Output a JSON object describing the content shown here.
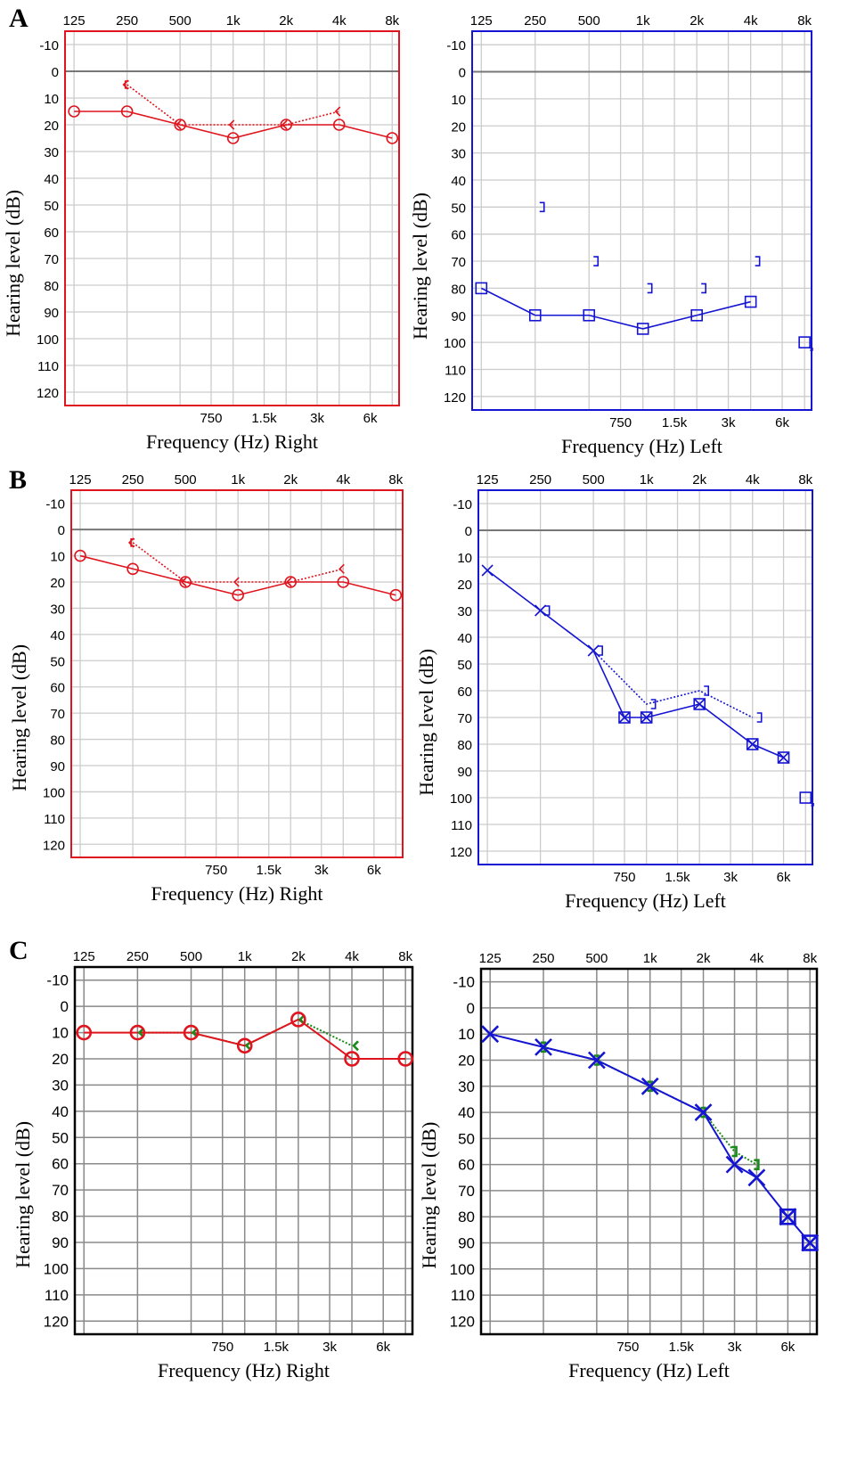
{
  "panel_letters": [
    "A",
    "B",
    "C"
  ],
  "colors": {
    "right": "#e0141e",
    "left": "#1414d2",
    "bone": "#1a8a1a",
    "grid_light": "#cccccc",
    "grid_dark": "#8a8a8a",
    "zero_line": "#777777"
  },
  "chart_data": [
    {
      "id": "A-right",
      "type": "line",
      "panel": "A",
      "ear": "Right",
      "xlabel": "Frequency (Hz)  Right",
      "ylabel": "Hearing level (dB)",
      "x_ticks_top": [
        "125",
        "250",
        "500",
        "1k",
        "2k",
        "4k",
        "8k"
      ],
      "x_ticks_bottom": [
        "750",
        "1.5k",
        "3k",
        "6k"
      ],
      "y_ticks": [
        "-10",
        "0",
        "10",
        "20",
        "30",
        "40",
        "50",
        "60",
        "70",
        "80",
        "90",
        "100",
        "110",
        "120"
      ],
      "ylim": [
        -15,
        125
      ],
      "y_inverted": true,
      "xscale": "log2",
      "series": [
        {
          "name": "Air conduction unmasked (O)",
          "symbol": "circle",
          "color": "#e0141e",
          "line": "solid",
          "points": [
            [
              125,
              15
            ],
            [
              250,
              15
            ],
            [
              500,
              20
            ],
            [
              1000,
              25
            ],
            [
              2000,
              20
            ],
            [
              4000,
              20
            ],
            [
              8000,
              25
            ]
          ]
        },
        {
          "name": "Bone conduction masked ([)",
          "symbol": "lbracket",
          "color": "#e0141e",
          "line": "none",
          "points": [
            [
              250,
              5
            ]
          ]
        },
        {
          "name": "Bone conduction unmasked (<)",
          "symbol": "lt",
          "color": "#e0141e",
          "line": "dotted",
          "points": [
            [
              250,
              5
            ],
            [
              500,
              20
            ],
            [
              1000,
              20
            ],
            [
              2000,
              20
            ],
            [
              4000,
              15
            ]
          ]
        }
      ]
    },
    {
      "id": "A-left",
      "type": "line",
      "panel": "A",
      "ear": "Left",
      "xlabel": "Frequency (Hz)  Left",
      "ylabel": "Hearing level (dB)",
      "x_ticks_top": [
        "125",
        "250",
        "500",
        "1k",
        "2k",
        "4k",
        "8k"
      ],
      "x_ticks_bottom": [
        "750",
        "1.5k",
        "3k",
        "6k"
      ],
      "y_ticks": [
        "-10",
        "0",
        "10",
        "20",
        "30",
        "40",
        "50",
        "60",
        "70",
        "80",
        "90",
        "100",
        "110",
        "120"
      ],
      "ylim": [
        -15,
        125
      ],
      "y_inverted": true,
      "xscale": "log2",
      "series": [
        {
          "name": "Air conduction masked (□)",
          "symbol": "square",
          "color": "#1414d2",
          "line": "solid",
          "points": [
            [
              125,
              80
            ],
            [
              250,
              90
            ],
            [
              500,
              90
            ],
            [
              1000,
              95
            ],
            [
              2000,
              90
            ],
            [
              4000,
              85
            ]
          ]
        },
        {
          "name": "Air conduction masked, no response",
          "symbol": "square-nr",
          "color": "#1414d2",
          "line": "none",
          "points": [
            [
              8000,
              100
            ]
          ]
        },
        {
          "name": "Bone conduction masked (])",
          "symbol": "rbracket",
          "color": "#1414d2",
          "line": "none",
          "points": [
            [
              250,
              50
            ],
            [
              500,
              70
            ],
            [
              1000,
              80
            ],
            [
              2000,
              80
            ],
            [
              4000,
              70
            ]
          ]
        }
      ]
    },
    {
      "id": "B-right",
      "type": "line",
      "panel": "B",
      "ear": "Right",
      "xlabel": "Frequency (Hz)  Right",
      "ylabel": "Hearing level (dB)",
      "x_ticks_top": [
        "125",
        "250",
        "500",
        "1k",
        "2k",
        "4k",
        "8k"
      ],
      "x_ticks_bottom": [
        "750",
        "1.5k",
        "3k",
        "6k"
      ],
      "y_ticks": [
        "-10",
        "0",
        "10",
        "20",
        "30",
        "40",
        "50",
        "60",
        "70",
        "80",
        "90",
        "100",
        "110",
        "120"
      ],
      "ylim": [
        -15,
        125
      ],
      "y_inverted": true,
      "xscale": "log2",
      "series": [
        {
          "name": "Air conduction unmasked (O)",
          "symbol": "circle",
          "color": "#e0141e",
          "line": "solid",
          "points": [
            [
              125,
              10
            ],
            [
              250,
              15
            ],
            [
              500,
              20
            ],
            [
              1000,
              25
            ],
            [
              2000,
              20
            ],
            [
              4000,
              20
            ],
            [
              8000,
              25
            ]
          ]
        },
        {
          "name": "Bone conduction masked ([)",
          "symbol": "lbracket",
          "color": "#e0141e",
          "line": "none",
          "points": [
            [
              250,
              5
            ]
          ]
        },
        {
          "name": "Bone conduction unmasked (<)",
          "symbol": "lt",
          "color": "#e0141e",
          "line": "dotted",
          "points": [
            [
              250,
              5
            ],
            [
              500,
              20
            ],
            [
              1000,
              20
            ],
            [
              2000,
              20
            ],
            [
              4000,
              15
            ]
          ]
        }
      ]
    },
    {
      "id": "B-left",
      "type": "line",
      "panel": "B",
      "ear": "Left",
      "xlabel": "Frequency (Hz)  Left",
      "ylabel": "Hearing level (dB)",
      "x_ticks_top": [
        "125",
        "250",
        "500",
        "1k",
        "2k",
        "4k",
        "8k"
      ],
      "x_ticks_bottom": [
        "750",
        "1.5k",
        "3k",
        "6k"
      ],
      "y_ticks": [
        "-10",
        "0",
        "10",
        "20",
        "30",
        "40",
        "50",
        "60",
        "70",
        "80",
        "90",
        "100",
        "110",
        "120"
      ],
      "ylim": [
        -15,
        125
      ],
      "y_inverted": true,
      "xscale": "log2",
      "series": [
        {
          "name": "Air conduction unmasked (X)",
          "symbol": "x",
          "color": "#1414d2",
          "line": "solid",
          "points": [
            [
              125,
              15
            ],
            [
              250,
              30
            ],
            [
              500,
              45
            ],
            [
              750,
              70
            ],
            [
              1000,
              70
            ],
            [
              2000,
              65
            ],
            [
              4000,
              80
            ],
            [
              6000,
              85
            ]
          ]
        },
        {
          "name": "Air conduction masked (□)",
          "symbol": "square",
          "color": "#1414d2",
          "line": "none",
          "points": [
            [
              750,
              70
            ],
            [
              1000,
              70
            ],
            [
              2000,
              65
            ],
            [
              4000,
              80
            ],
            [
              6000,
              85
            ]
          ]
        },
        {
          "name": "Air conduction masked, no response",
          "symbol": "square-nr",
          "color": "#1414d2",
          "line": "none",
          "points": [
            [
              8000,
              100
            ]
          ]
        },
        {
          "name": "Bone conduction masked (])",
          "symbol": "rbracket",
          "color": "#1414d2",
          "line": "dotted",
          "points": [
            [
              500,
              45
            ],
            [
              1000,
              65
            ],
            [
              2000,
              60
            ],
            [
              4000,
              70
            ]
          ]
        },
        {
          "name": "Bone conduction masked 250 (])",
          "symbol": "rbracket",
          "color": "#1414d2",
          "line": "none",
          "points": [
            [
              250,
              30
            ]
          ]
        }
      ]
    },
    {
      "id": "C-right",
      "type": "line",
      "panel": "C",
      "ear": "Right",
      "xlabel": "Frequency (Hz)  Right",
      "ylabel": "Hearing level (dB)",
      "x_ticks_top": [
        "125",
        "250",
        "500",
        "1k",
        "2k",
        "4k",
        "8k"
      ],
      "x_ticks_bottom": [
        "750",
        "1.5k",
        "3k",
        "6k"
      ],
      "y_ticks": [
        "-10",
        "0",
        "10",
        "20",
        "30",
        "40",
        "50",
        "60",
        "70",
        "80",
        "90",
        "100",
        "110",
        "120"
      ],
      "ylim": [
        -15,
        125
      ],
      "y_inverted": true,
      "xscale": "log2",
      "series": [
        {
          "name": "Bone conduction unmasked (<)",
          "symbol": "lt",
          "color": "#1a8a1a",
          "line": "dotted",
          "points": [
            [
              250,
              10
            ],
            [
              500,
              10
            ],
            [
              1000,
              15
            ],
            [
              2000,
              5
            ],
            [
              4000,
              15
            ]
          ]
        },
        {
          "name": "Air conduction unmasked (O)",
          "symbol": "circle-bold",
          "color": "#e0141e",
          "line": "solid",
          "points": [
            [
              125,
              10
            ],
            [
              250,
              10
            ],
            [
              500,
              10
            ],
            [
              1000,
              15
            ],
            [
              2000,
              5
            ],
            [
              4000,
              20
            ],
            [
              8000,
              20
            ]
          ]
        }
      ]
    },
    {
      "id": "C-left",
      "type": "line",
      "panel": "C",
      "ear": "Left",
      "xlabel": "Frequency (Hz)  Left",
      "ylabel": "Hearing level (dB)",
      "x_ticks_top": [
        "125",
        "250",
        "500",
        "1k",
        "2k",
        "4k",
        "8k"
      ],
      "x_ticks_bottom": [
        "750",
        "1.5k",
        "3k",
        "6k"
      ],
      "y_ticks": [
        "-10",
        "0",
        "10",
        "20",
        "30",
        "40",
        "50",
        "60",
        "70",
        "80",
        "90",
        "100",
        "110",
        "120"
      ],
      "ylim": [
        -15,
        125
      ],
      "y_inverted": true,
      "xscale": "log2",
      "series": [
        {
          "name": "Bone conduction masked (])",
          "symbol": "rbracket-bold",
          "color": "#1a8a1a",
          "line": "dotted",
          "points": [
            [
              250,
              15
            ],
            [
              500,
              20
            ],
            [
              1000,
              30
            ],
            [
              2000,
              40
            ],
            [
              3000,
              55
            ],
            [
              4000,
              60
            ]
          ]
        },
        {
          "name": "Air conduction unmasked (X)",
          "symbol": "x-bold",
          "color": "#1414d2",
          "line": "solid",
          "points": [
            [
              125,
              10
            ],
            [
              250,
              15
            ],
            [
              500,
              20
            ],
            [
              1000,
              30
            ],
            [
              2000,
              40
            ],
            [
              3000,
              60
            ],
            [
              4000,
              65
            ],
            [
              6000,
              80
            ],
            [
              8000,
              90
            ]
          ]
        },
        {
          "name": "Air conduction masked (□)",
          "symbol": "square-bold",
          "color": "#1414d2",
          "line": "none",
          "points": [
            [
              6000,
              80
            ],
            [
              8000,
              90
            ]
          ]
        }
      ]
    }
  ]
}
